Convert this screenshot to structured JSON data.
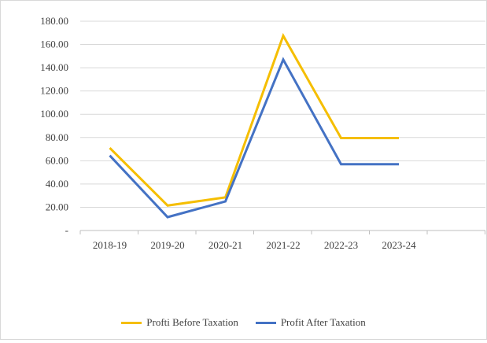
{
  "chart_data": {
    "type": "line",
    "title": "",
    "xlabel": "",
    "ylabel": "",
    "categories": [
      "2018-19",
      "2019-20",
      "2020-21",
      "2021-22",
      "2022-23",
      "2023-24"
    ],
    "ylim": [
      0,
      180
    ],
    "yticks": [
      "-",
      "20.00",
      "40.00",
      "60.00",
      "80.00",
      "100.00",
      "120.00",
      "140.00",
      "160.00",
      "180.00"
    ],
    "grid": true,
    "legend_position": "bottom",
    "series": [
      {
        "name": "Profti Before Taxation",
        "color": "#f5be00",
        "values": [
          71,
          21.5,
          28.5,
          167.5,
          79.5,
          79.5
        ]
      },
      {
        "name": "Profit After Taxation",
        "color": "#4472c4",
        "values": [
          64.5,
          11.5,
          25,
          147,
          57,
          57
        ]
      }
    ]
  }
}
